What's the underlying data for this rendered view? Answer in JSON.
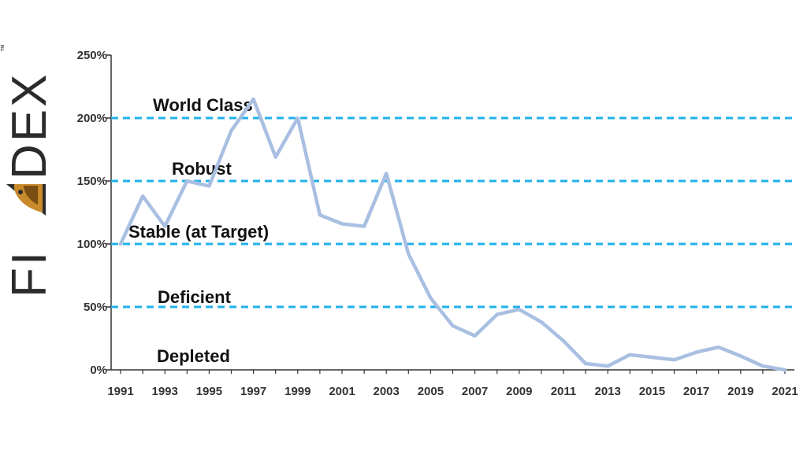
{
  "logo": {
    "text_before": "FI",
    "text_after": "DEX",
    "trademark": "™",
    "icon": "bird-head-icon"
  },
  "chart_data": {
    "type": "line",
    "x": [
      1991,
      1992,
      1993,
      1994,
      1995,
      1996,
      1997,
      1998,
      1999,
      2000,
      2001,
      2002,
      2003,
      2004,
      2005,
      2006,
      2007,
      2008,
      2009,
      2010,
      2011,
      2012,
      2013,
      2014,
      2015,
      2016,
      2017,
      2018,
      2019,
      2020,
      2021
    ],
    "series": [
      {
        "values": [
          100,
          138,
          114,
          150,
          146,
          190,
          215,
          169,
          200,
          123,
          116,
          114,
          156,
          92,
          57,
          35,
          27,
          44,
          48,
          38,
          23,
          5,
          3,
          12,
          10,
          8,
          14,
          18,
          11,
          3,
          0
        ],
        "color": "#a9bfe2"
      }
    ],
    "xticks": [
      "1991",
      "1993",
      "1995",
      "1997",
      "1999",
      "2001",
      "2003",
      "2005",
      "2007",
      "2009",
      "2011",
      "2013",
      "2015",
      "2017",
      "2019",
      "2021"
    ],
    "yticks": [
      "0%",
      "50%",
      "100%",
      "150%",
      "200%",
      "250%"
    ],
    "ylim": [
      0,
      250
    ],
    "xlim": [
      1991,
      2021
    ],
    "reference_lines": [
      {
        "label": "World Class",
        "y": 200,
        "label_color": "#111111"
      },
      {
        "label": "Robust",
        "y": 150,
        "label_color": "#111111"
      },
      {
        "label": "Stable (at Target)",
        "y": 100,
        "label_color": "#111111"
      },
      {
        "label": "Deficient",
        "y": 50,
        "label_color": "#111111"
      },
      {
        "label": "Depleted",
        "y": 0,
        "label_color": "#e8141c"
      }
    ],
    "reference_line_color": "#1fb1ea",
    "grid": false
  }
}
